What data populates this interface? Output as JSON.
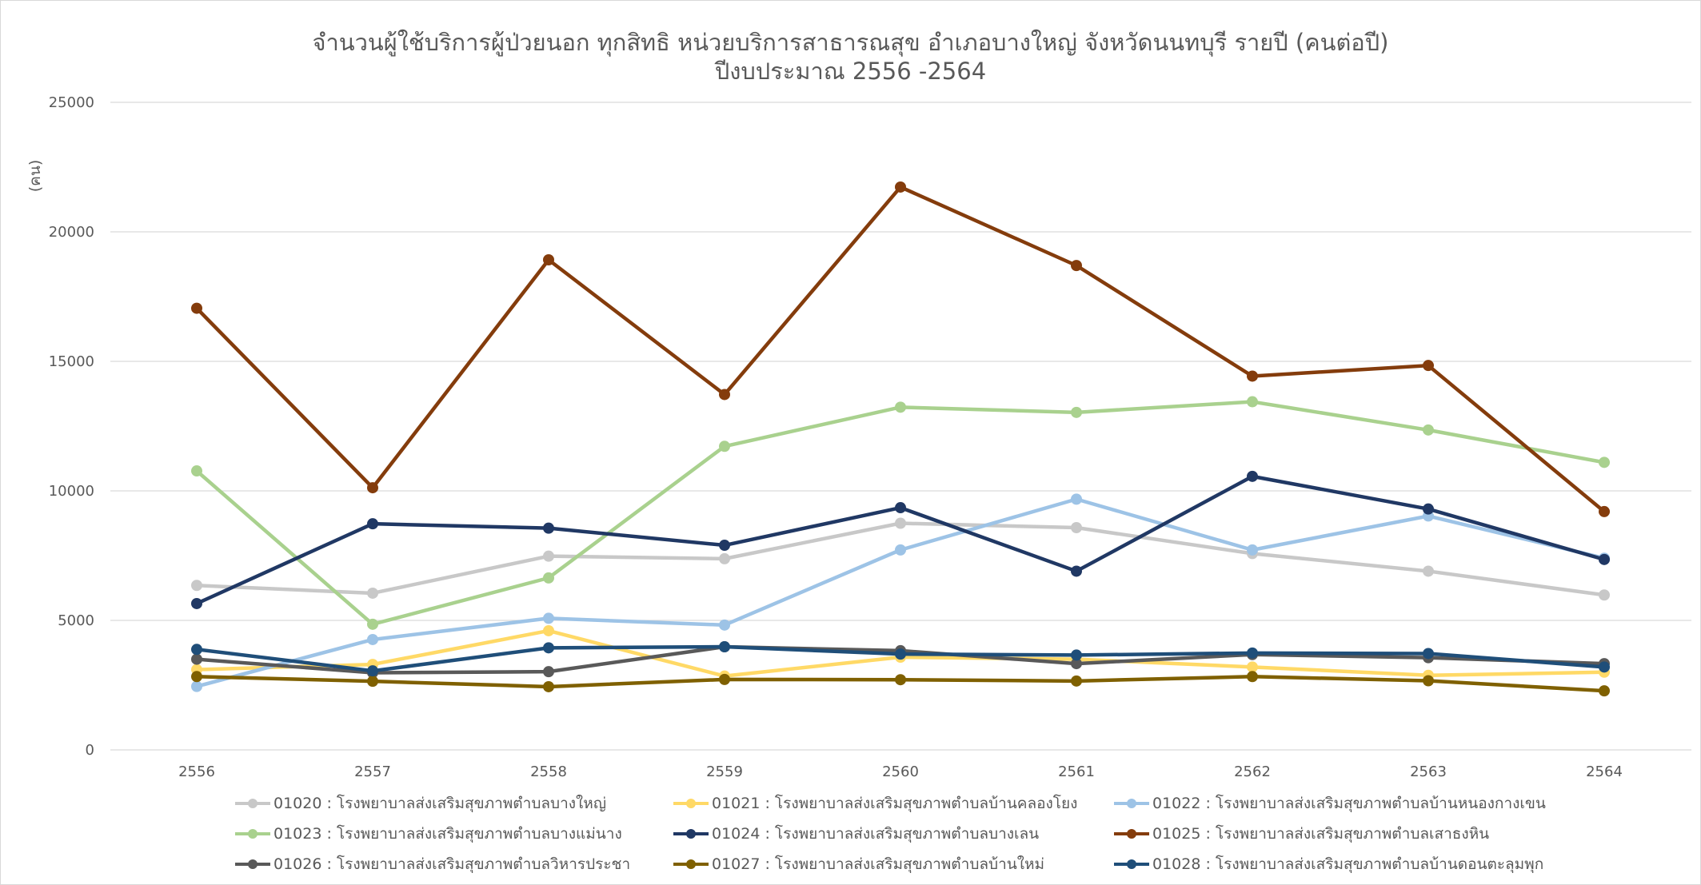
{
  "chart_data": {
    "type": "line",
    "title_line1": "จำนวนผู้ใช้บริการผู้ป่วยนอก ทุกสิทธิ หน่วยบริการสาธารณสุข อำเภอบางใหญ่ จังหวัดนนทบุรี  รายปี (คนต่อปี)",
    "title_line2": "ปีงบประมาณ 2556 -2564",
    "ylabel": "(คน)",
    "xlabel": "",
    "categories": [
      "2556",
      "2557",
      "2558",
      "2559",
      "2560",
      "2561",
      "2562",
      "2563",
      "2564"
    ],
    "ylim": [
      0,
      25000
    ],
    "yticks": [
      0,
      5000,
      10000,
      15000,
      20000,
      25000
    ],
    "grid": true,
    "legend_position": "bottom",
    "series": [
      {
        "name": "01020 : โรงพยาบาลส่งเสริมสุขภาพตำบลบางใหญ่",
        "color": "#c8c8c8",
        "values": [
          6350,
          6050,
          7480,
          7380,
          8750,
          8580,
          7580,
          6900,
          5980
        ]
      },
      {
        "name": "01021 : โรงพยาบาลส่งเสริมสุขภาพตำบลบ้านคลองโยง",
        "color": "#ffd966",
        "values": [
          3100,
          3300,
          4600,
          2850,
          3580,
          3500,
          3200,
          2880,
          3000
        ]
      },
      {
        "name": "01022 : โรงพยาบาลส่งเสริมสุขภาพตำบลบ้านหนองกางเขน",
        "color": "#9dc3e6",
        "values": [
          2450,
          4260,
          5080,
          4820,
          7720,
          9680,
          7720,
          9030,
          7400
        ]
      },
      {
        "name": "01023 : โรงพยาบาลส่งเสริมสุขภาพตำบลบางแม่นาง",
        "color": "#a9d18e",
        "values": [
          10770,
          4850,
          6640,
          11720,
          13230,
          13030,
          13440,
          12350,
          11100
        ]
      },
      {
        "name": "01024 : โรงพยาบาลส่งเสริมสุขภาพตำบลบางเลน",
        "color": "#203864",
        "values": [
          5650,
          8730,
          8560,
          7900,
          9350,
          6900,
          10560,
          9300,
          7350
        ]
      },
      {
        "name": "01025 : โรงพยาบาลส่งเสริมสุขภาพตำบลเสาธงหิน",
        "color": "#843c0c",
        "values": [
          17050,
          10120,
          18920,
          13720,
          21730,
          18700,
          14430,
          14840,
          9200
        ]
      },
      {
        "name": "01026 : โรงพยาบาลส่งเสริมสุขภาพตำบลวิหารประชา",
        "color": "#595959",
        "values": [
          3500,
          2980,
          3020,
          3980,
          3830,
          3330,
          3680,
          3560,
          3330
        ]
      },
      {
        "name": "01027 : โรงพยาบาลส่งเสริมสุขภาพตำบลบ้านใหม่",
        "color": "#7f6000",
        "values": [
          2830,
          2650,
          2440,
          2720,
          2710,
          2660,
          2830,
          2670,
          2280
        ]
      },
      {
        "name": "01028 : โรงพยาบาลส่งเสริมสุขภาพตำบลบ้านดอนตะลุมพุก",
        "color": "#1f4e79",
        "values": [
          3880,
          3050,
          3940,
          3980,
          3700,
          3660,
          3740,
          3720,
          3200
        ]
      }
    ]
  }
}
